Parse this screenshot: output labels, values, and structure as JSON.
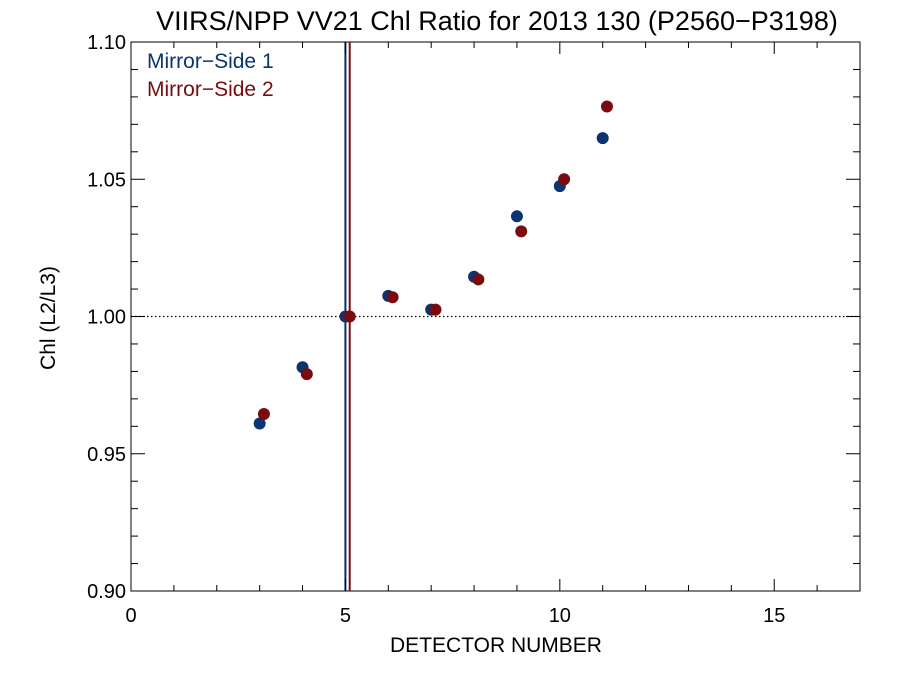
{
  "chart_data": {
    "type": "scatter",
    "title": "VIIRS/NPP VV21 Chl Ratio for 2013 130 (P2560−P3198)",
    "xlabel": "DETECTOR NUMBER",
    "ylabel": "Chl (L2/L3)",
    "xlim": [
      0,
      17
    ],
    "ylim": [
      0.9,
      1.1
    ],
    "x_ticks": [
      0,
      5,
      10,
      15
    ],
    "x_tick_labels": [
      "0",
      "5",
      "10",
      "15"
    ],
    "y_ticks": [
      0.9,
      0.95,
      1.0,
      1.05,
      1.1
    ],
    "y_tick_labels": [
      "0.90",
      "0.95",
      "1.00",
      "1.05",
      "1.10"
    ],
    "grid": false,
    "legend_position": "top-left",
    "reference_line_y": 1.0,
    "vertical_lines": [
      {
        "x": 5.0,
        "color": "#0b2b6b"
      },
      {
        "x": 5.1,
        "color": "#7a0c10"
      }
    ],
    "series": [
      {
        "name": "Mirror−Side 1",
        "color": "#0b3470",
        "points": [
          {
            "x": 3,
            "y": 0.961
          },
          {
            "x": 4,
            "y": 0.9815
          },
          {
            "x": 5,
            "y": 1.0
          },
          {
            "x": 6,
            "y": 1.0075
          },
          {
            "x": 7,
            "y": 1.0025
          },
          {
            "x": 8,
            "y": 1.0145
          },
          {
            "x": 9,
            "y": 1.0365
          },
          {
            "x": 10,
            "y": 1.0475
          },
          {
            "x": 11,
            "y": 1.065
          }
        ]
      },
      {
        "name": "Mirror−Side 2",
        "color": "#7a0c10",
        "points": [
          {
            "x": 3.1,
            "y": 0.9645
          },
          {
            "x": 4.1,
            "y": 0.979
          },
          {
            "x": 5.1,
            "y": 1.0
          },
          {
            "x": 6.1,
            "y": 1.007
          },
          {
            "x": 7.1,
            "y": 1.0025
          },
          {
            "x": 8.1,
            "y": 1.0135
          },
          {
            "x": 9.1,
            "y": 1.031
          },
          {
            "x": 10.1,
            "y": 1.05
          },
          {
            "x": 11.1,
            "y": 1.0765
          }
        ]
      }
    ]
  }
}
